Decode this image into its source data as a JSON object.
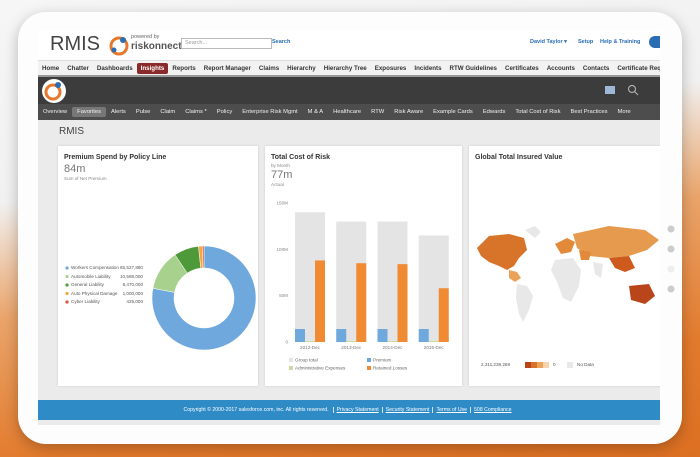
{
  "header": {
    "app_name": "RMIS",
    "powered_by": "powered by",
    "brand": "riskonnect",
    "search_placeholder": "Search...",
    "search_button": "Search",
    "user": "David Taylor ▾",
    "links": [
      "Setup",
      "Help & Training"
    ]
  },
  "tabs": [
    "Home",
    "Chatter",
    "Dashboards",
    "Insights",
    "Reports",
    "Report Manager",
    "Claims",
    "Hierarchy",
    "Hierarchy Tree",
    "Exposures",
    "Incidents",
    "RTW Guidelines",
    "Certificates",
    "Accounts",
    "Contacts",
    "Certificate Requirement"
  ],
  "active_tab_index": 3,
  "subnav": [
    "Overview",
    "Favorites",
    "Alerts",
    "Pulse",
    "Claim",
    "Claims *",
    "Policy",
    "Enterprise Risk Mgmt",
    "M & A",
    "Healthcare",
    "RTW",
    "Risk Aware",
    "Example Cards",
    "Edwards",
    "Total Cost of Risk",
    "Best Practices",
    "More"
  ],
  "active_subnav_index": 1,
  "page_title": "RMIS",
  "chart_data": [
    {
      "type": "donut",
      "title": "Premium Spend by Policy Line",
      "total_label": "84m",
      "subtitle": "Sum of Net Premium",
      "categories": [
        "Workers Compensation",
        "Automobile Liability",
        "General Liability",
        "Auto Physical Damage",
        "Cyber Liability"
      ],
      "values": [
        65527880,
        10588000,
        6470000,
        1000000,
        425000
      ],
      "value_labels": [
        "65,527,880",
        "10,588,000",
        "6,470,000",
        "1,000,000",
        "425,000"
      ],
      "colors": [
        "#6fa8dc",
        "#a9d18e",
        "#4e9a3a",
        "#f4a742",
        "#d9573b"
      ]
    },
    {
      "type": "bar",
      "title": "Total Cost of Risk",
      "subtitle": "by Month",
      "total_label": "77m",
      "caption": "Actual",
      "categories": [
        "2012-Dec",
        "2013-Dec",
        "2014-Dec",
        "2015-Dec"
      ],
      "series": [
        {
          "name": "Group total",
          "color": "#e4e4e4",
          "values": [
            140,
            130,
            130,
            115
          ]
        },
        {
          "name": "Premium",
          "color": "#6fa8dc",
          "values": [
            14,
            14,
            14,
            14
          ]
        },
        {
          "name": "Administrative Expenses",
          "color": "#c9dba0",
          "values": [
            1,
            1,
            1,
            1
          ]
        },
        {
          "name": "Retained Losses",
          "color": "#f08a33",
          "values": [
            88,
            85,
            84,
            58
          ]
        }
      ],
      "ylim": [
        0,
        150
      ],
      "yticks": [
        {
          "value": 0,
          "label": "0"
        },
        {
          "value": 50,
          "label": "50M"
        },
        {
          "value": 100,
          "label": "100M"
        },
        {
          "value": 150,
          "label": "150M"
        }
      ],
      "grid": false
    }
  ],
  "map_card": {
    "title": "Global Total Insured Value",
    "legend_max": "2,311,239,268",
    "legend_min": "0",
    "no_data": "No Data"
  },
  "footer": {
    "copyright": "Copyright © 2000-2017 salesforce.com, inc. All rights reserved.",
    "links": [
      "Privacy Statement",
      "Security Statement",
      "Terms of Use",
      "508 Compliance"
    ]
  }
}
